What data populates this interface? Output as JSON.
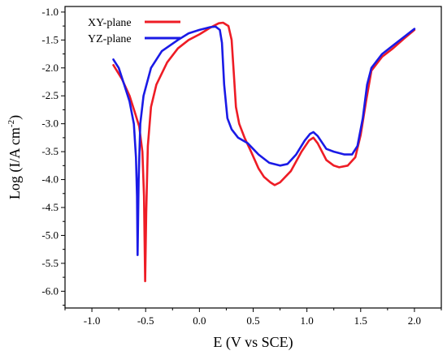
{
  "chart_data": {
    "type": "line",
    "title": "",
    "xlabel": "E (V vs SCE)",
    "ylabel_main": "Log (I/A cm",
    "ylabel_sup": "-2",
    "ylabel_close": ")",
    "xlim": [
      -1.25,
      2.25
    ],
    "ylim": [
      -6.3,
      -0.9
    ],
    "x_ticks": [
      -1.0,
      -0.5,
      0.0,
      0.5,
      1.0,
      1.5,
      2.0
    ],
    "x_tick_labels": [
      "-1.0",
      "-0.5",
      "0.0",
      "0.5",
      "1.0",
      "1.5",
      "2.0"
    ],
    "y_ticks": [
      -1.0,
      -1.5,
      -2.0,
      -2.5,
      -3.0,
      -3.5,
      -4.0,
      -4.5,
      -5.0,
      -5.5,
      -6.0
    ],
    "y_tick_labels": [
      "-1.0",
      "-1.5",
      "-2.0",
      "-2.5",
      "-3.0",
      "-3.5",
      "-4.0",
      "-4.5",
      "-5.0",
      "-5.5",
      "-6.0"
    ],
    "legend_position": "top-left",
    "series": [
      {
        "name": "XY-plane",
        "color": "#ee1c25",
        "points": [
          [
            -0.8,
            -1.95
          ],
          [
            -0.72,
            -2.2
          ],
          [
            -0.65,
            -2.5
          ],
          [
            -0.6,
            -2.8
          ],
          [
            -0.56,
            -3.05
          ],
          [
            -0.53,
            -3.5
          ],
          [
            -0.515,
            -4.3
          ],
          [
            -0.505,
            -5.82
          ],
          [
            -0.495,
            -4.6
          ],
          [
            -0.48,
            -3.4
          ],
          [
            -0.45,
            -2.7
          ],
          [
            -0.4,
            -2.3
          ],
          [
            -0.3,
            -1.9
          ],
          [
            -0.2,
            -1.65
          ],
          [
            -0.1,
            -1.5
          ],
          [
            0.0,
            -1.4
          ],
          [
            0.1,
            -1.28
          ],
          [
            0.18,
            -1.2
          ],
          [
            0.22,
            -1.19
          ],
          [
            0.27,
            -1.25
          ],
          [
            0.3,
            -1.5
          ],
          [
            0.32,
            -2.1
          ],
          [
            0.34,
            -2.7
          ],
          [
            0.37,
            -3.0
          ],
          [
            0.42,
            -3.25
          ],
          [
            0.48,
            -3.5
          ],
          [
            0.55,
            -3.8
          ],
          [
            0.6,
            -3.95
          ],
          [
            0.66,
            -4.05
          ],
          [
            0.7,
            -4.1
          ],
          [
            0.75,
            -4.05
          ],
          [
            0.85,
            -3.85
          ],
          [
            0.95,
            -3.5
          ],
          [
            1.02,
            -3.3
          ],
          [
            1.06,
            -3.25
          ],
          [
            1.1,
            -3.35
          ],
          [
            1.18,
            -3.65
          ],
          [
            1.25,
            -3.75
          ],
          [
            1.3,
            -3.78
          ],
          [
            1.38,
            -3.75
          ],
          [
            1.45,
            -3.6
          ],
          [
            1.5,
            -3.2
          ],
          [
            1.55,
            -2.6
          ],
          [
            1.6,
            -2.05
          ],
          [
            1.7,
            -1.8
          ],
          [
            1.8,
            -1.65
          ],
          [
            1.9,
            -1.48
          ],
          [
            2.0,
            -1.32
          ]
        ]
      },
      {
        "name": "YZ-plane",
        "color": "#1a1ae6",
        "points": [
          [
            -0.8,
            -1.85
          ],
          [
            -0.75,
            -2.0
          ],
          [
            -0.7,
            -2.3
          ],
          [
            -0.65,
            -2.6
          ],
          [
            -0.61,
            -3.0
          ],
          [
            -0.59,
            -3.6
          ],
          [
            -0.58,
            -4.3
          ],
          [
            -0.575,
            -5.35
          ],
          [
            -0.565,
            -4.0
          ],
          [
            -0.55,
            -3.0
          ],
          [
            -0.52,
            -2.5
          ],
          [
            -0.45,
            -2.0
          ],
          [
            -0.35,
            -1.7
          ],
          [
            -0.2,
            -1.5
          ],
          [
            -0.1,
            -1.38
          ],
          [
            0.0,
            -1.32
          ],
          [
            0.1,
            -1.27
          ],
          [
            0.15,
            -1.26
          ],
          [
            0.19,
            -1.32
          ],
          [
            0.21,
            -1.55
          ],
          [
            0.23,
            -2.3
          ],
          [
            0.26,
            -2.9
          ],
          [
            0.3,
            -3.1
          ],
          [
            0.36,
            -3.25
          ],
          [
            0.45,
            -3.35
          ],
          [
            0.55,
            -3.55
          ],
          [
            0.65,
            -3.7
          ],
          [
            0.75,
            -3.75
          ],
          [
            0.82,
            -3.72
          ],
          [
            0.9,
            -3.55
          ],
          [
            0.98,
            -3.3
          ],
          [
            1.03,
            -3.18
          ],
          [
            1.06,
            -3.15
          ],
          [
            1.1,
            -3.22
          ],
          [
            1.18,
            -3.45
          ],
          [
            1.25,
            -3.5
          ],
          [
            1.35,
            -3.55
          ],
          [
            1.42,
            -3.55
          ],
          [
            1.47,
            -3.4
          ],
          [
            1.52,
            -2.9
          ],
          [
            1.56,
            -2.3
          ],
          [
            1.6,
            -2.0
          ],
          [
            1.7,
            -1.75
          ],
          [
            1.8,
            -1.6
          ],
          [
            1.9,
            -1.45
          ],
          [
            2.0,
            -1.3
          ]
        ]
      }
    ]
  }
}
